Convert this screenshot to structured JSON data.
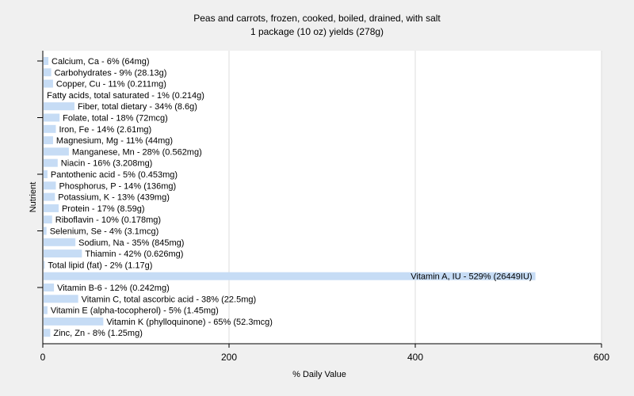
{
  "chart_data": {
    "type": "bar",
    "orientation": "horizontal",
    "title": "Peas and carrots, frozen, cooked, boiled, drained, with salt",
    "subtitle": "1 package (10 oz) yields (278g)",
    "xlabel": "% Daily Value",
    "ylabel": "Nutrient",
    "xlim": [
      0,
      600
    ],
    "xticks": [
      0,
      200,
      400,
      600
    ],
    "grid": "vertical",
    "bar_color": "#c6dcf5",
    "categories": [
      "Calcium, Ca",
      "Carbohydrates",
      "Copper, Cu",
      "Fatty acids, total saturated",
      "Fiber, total dietary",
      "Folate, total",
      "Iron, Fe",
      "Magnesium, Mg",
      "Manganese, Mn",
      "Niacin",
      "Pantothenic acid",
      "Phosphorus, P",
      "Potassium, K",
      "Protein",
      "Riboflavin",
      "Selenium, Se",
      "Sodium, Na",
      "Thiamin",
      "Total lipid (fat)",
      "Vitamin A, IU",
      "Vitamin B-6",
      "Vitamin C, total ascorbic acid",
      "Vitamin E (alpha-tocopherol)",
      "Vitamin K (phylloquinone)",
      "Zinc, Zn"
    ],
    "values": [
      6,
      9,
      11,
      1,
      34,
      18,
      14,
      11,
      28,
      16,
      5,
      14,
      13,
      17,
      10,
      4,
      35,
      42,
      2,
      529,
      12,
      38,
      5,
      65,
      8
    ],
    "labels": [
      "Calcium, Ca - 6% (64mg)",
      "Carbohydrates - 9% (28.13g)",
      "Copper, Cu - 11% (0.211mg)",
      "Fatty acids, total saturated - 1% (0.214g)",
      "Fiber, total dietary - 34% (8.6g)",
      "Folate, total - 18% (72mcg)",
      "Iron, Fe - 14% (2.61mg)",
      "Magnesium, Mg - 11% (44mg)",
      "Manganese, Mn - 28% (0.562mg)",
      "Niacin - 16% (3.208mg)",
      "Pantothenic acid - 5% (0.453mg)",
      "Phosphorus, P - 14% (136mg)",
      "Potassium, K - 13% (439mg)",
      "Protein - 17% (8.59g)",
      "Riboflavin - 10% (0.178mg)",
      "Selenium, Se - 4% (3.1mcg)",
      "Sodium, Na - 35% (845mg)",
      "Thiamin - 42% (0.626mg)",
      "Total lipid (fat) - 2% (1.17g)",
      "Vitamin A, IU - 529% (26449IU)",
      "Vitamin B-6 - 12% (0.242mg)",
      "Vitamin C, total ascorbic acid - 38% (22.5mg)",
      "Vitamin E (alpha-tocopherol) - 5% (1.45mg)",
      "Vitamin K (phylloquinone) - 65% (52.3mcg)",
      "Zinc, Zn - 8% (1.25mg)"
    ]
  }
}
